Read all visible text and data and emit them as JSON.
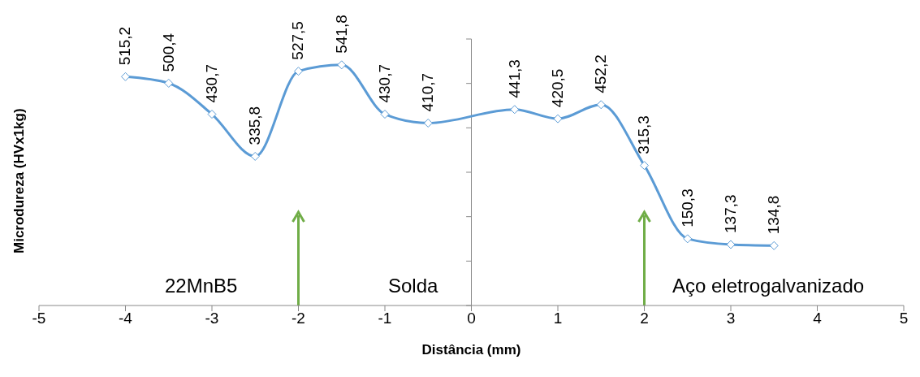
{
  "chart_data": {
    "type": "line",
    "xlabel": "Distância (mm)",
    "ylabel": "Microdureza (HVx1kg)",
    "x": [
      -4,
      -3.5,
      -3,
      -2.5,
      -2,
      -1.5,
      -1,
      -0.5,
      0.5,
      1,
      1.5,
      2,
      2.5,
      3,
      3.5
    ],
    "series": [
      {
        "color": "#5b9bd5",
        "values": [
          515.2,
          500.4,
          430.7,
          335.8,
          527.5,
          541.8,
          430.7,
          410.7,
          441.3,
          420.5,
          452.2,
          315.3,
          150.3,
          137.3,
          134.8
        ],
        "value_labels": [
          "515,2",
          "500,4",
          "430,7",
          "335,8",
          "527,5",
          "541,8",
          "430,7",
          "410,7",
          "441,3",
          "420,5",
          "452,2",
          "315,3",
          "150,3",
          "137,3",
          "134,8"
        ]
      }
    ],
    "xlim": [
      -5,
      5
    ],
    "xticks": [
      -5,
      -4,
      -3,
      -2,
      -1,
      0,
      1,
      2,
      3,
      4,
      5
    ],
    "ylim": [
      0,
      600
    ],
    "yticks": [
      {
        "value": 0,
        "label": null
      },
      {
        "value": 100,
        "label": null
      },
      {
        "value": 200,
        "label": null
      },
      {
        "value": 300,
        "label": null
      },
      {
        "value": 400,
        "label": null
      },
      {
        "value": 500,
        "label": null
      },
      {
        "value": 600,
        "label": null
      }
    ],
    "tick_labels": "x",
    "marker": "diamond",
    "line_style": "solid",
    "ref_lines": [
      {
        "axis": "x",
        "value": -2,
        "color": "#70ad47"
      },
      {
        "axis": "x",
        "value": 2,
        "color": "#70ad47"
      }
    ],
    "annotations": [
      "22MnB5",
      "Solda",
      "Aço eletrogalvanizado"
    ]
  }
}
